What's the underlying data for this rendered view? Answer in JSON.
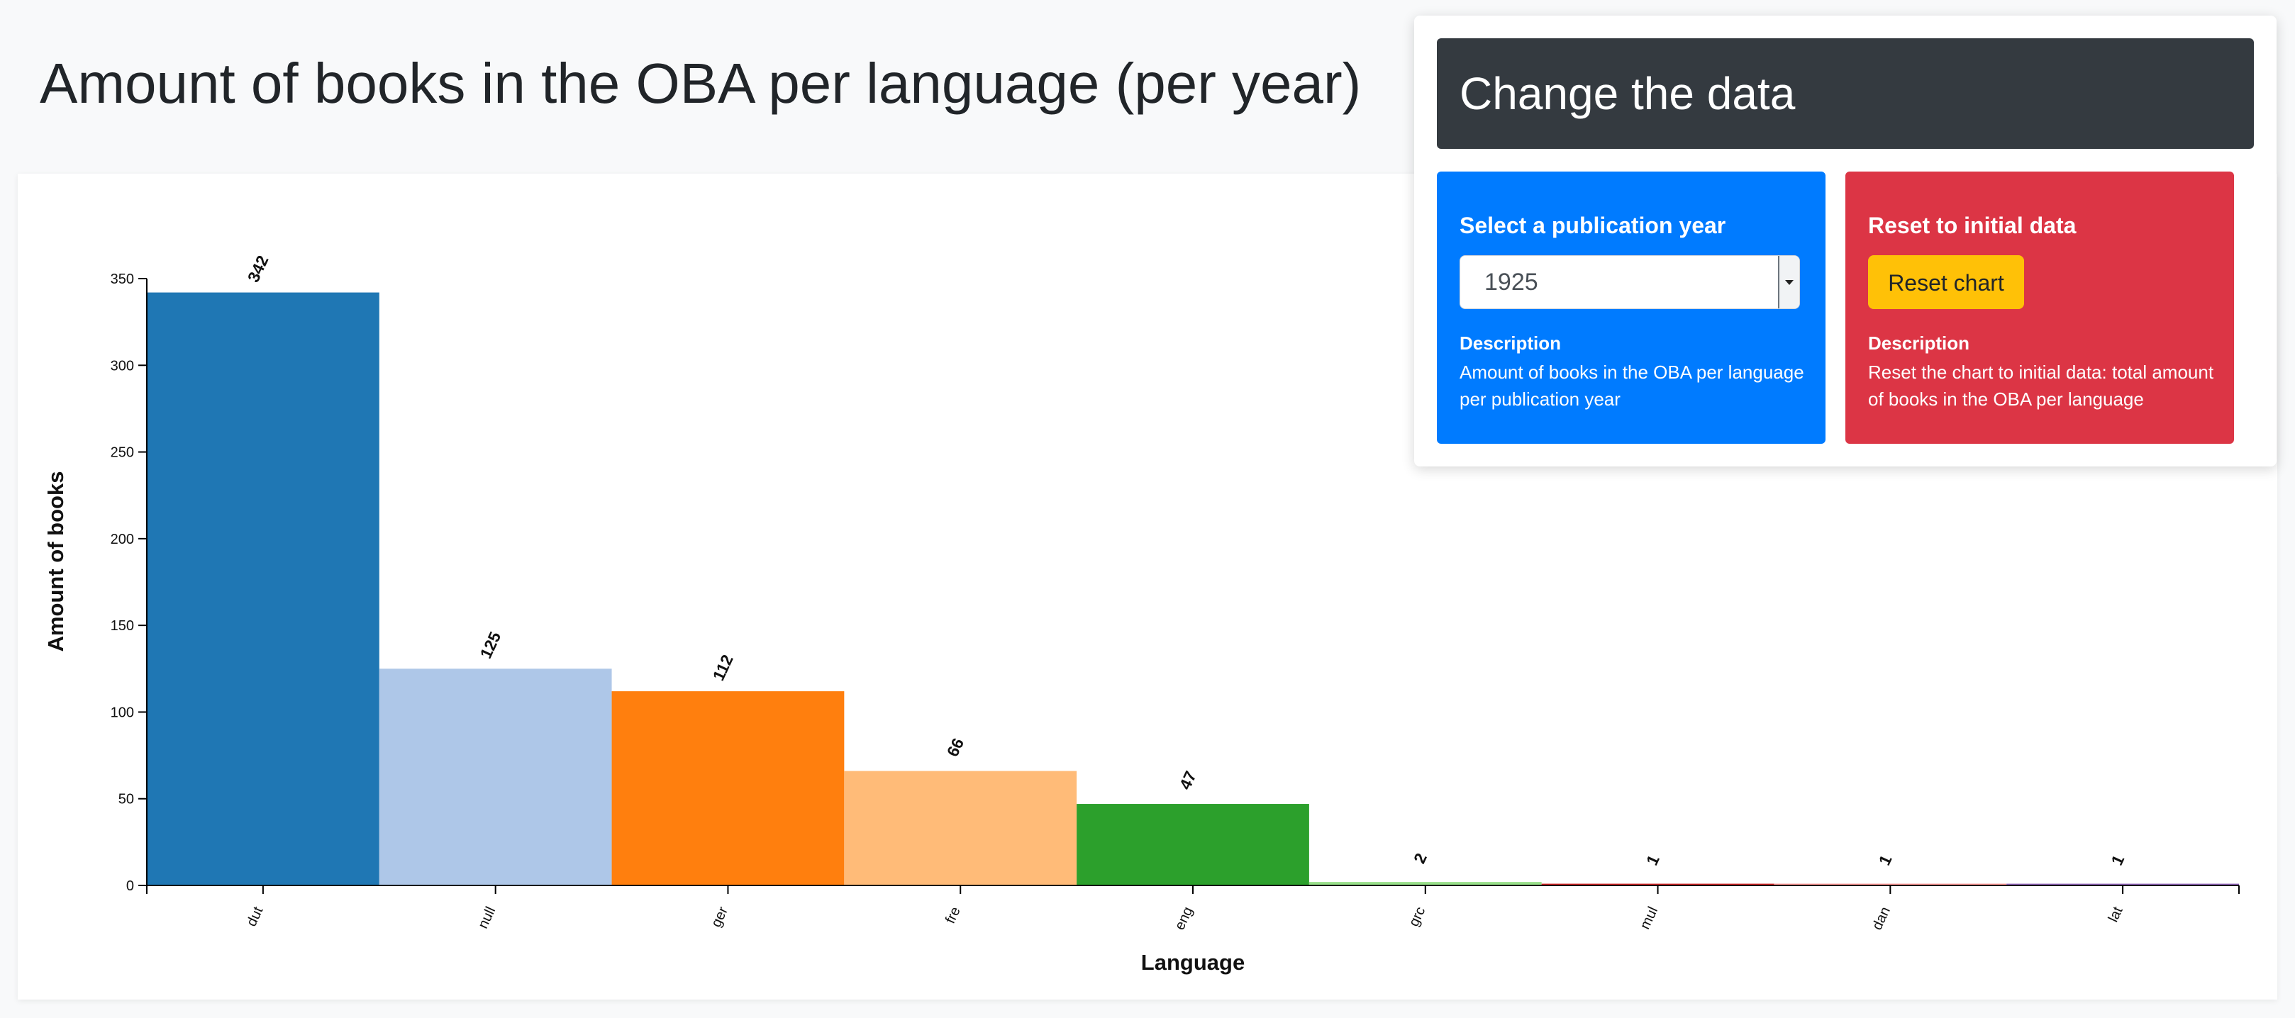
{
  "page": {
    "title": "Amount of books in the OBA per language (per year)"
  },
  "panel": {
    "heading": "Change the data",
    "year_box": {
      "title": "Select a publication year",
      "selected_year": "1925",
      "description_title": "Description",
      "description": "Amount of books in the OBA per language per publication year",
      "color": "#007bff"
    },
    "reset_box": {
      "title": "Reset to initial data",
      "button_label": "Reset chart",
      "description_title": "Description",
      "description": "Reset the chart to initial data: total amount of books in the OBA per language",
      "color": "#dc3545",
      "button_color": "#ffc107"
    }
  },
  "chart_data": {
    "type": "bar",
    "xlabel": "Language",
    "ylabel": "Amount of books",
    "ylim": [
      0,
      350
    ],
    "yticks": [
      0,
      50,
      100,
      150,
      200,
      250,
      300,
      350
    ],
    "categories": [
      "dut",
      "null",
      "ger",
      "fre",
      "eng",
      "grc",
      "mul",
      "dan",
      "lat"
    ],
    "values": [
      342,
      125,
      112,
      66,
      47,
      2,
      1,
      1,
      1
    ],
    "colors": [
      "#1f77b4",
      "#aec7e8",
      "#ff7f0e",
      "#ffbb78",
      "#2ca02c",
      "#98df8a",
      "#d62728",
      "#ff9896",
      "#9467bd"
    ],
    "grid": false,
    "legend": "none"
  }
}
